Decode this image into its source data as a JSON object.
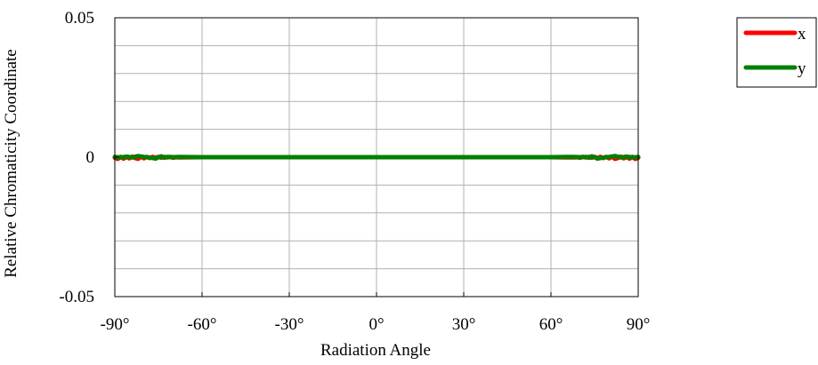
{
  "chart_data": {
    "type": "line",
    "title": "",
    "xlabel": "Radiation Angle",
    "ylabel": "Relative Chromaticity Coordinate",
    "xlim": [
      -90,
      90
    ],
    "ylim": [
      -0.05,
      0.05
    ],
    "x_ticks": [
      -90,
      -60,
      -30,
      0,
      30,
      60,
      90
    ],
    "x_tick_labels": [
      "-90°",
      "-60°",
      "-30°",
      "0°",
      "30°",
      "60°",
      "90°"
    ],
    "y_ticks": [
      0.05,
      0,
      -0.05
    ],
    "y_tick_labels": [
      "0.05",
      "0",
      "-0.05"
    ],
    "grid": true,
    "legend_position": "top-right",
    "series": [
      {
        "name": "x",
        "color": "#ff0000",
        "x": [
          -90,
          -89,
          -88,
          -87,
          -86,
          -85,
          -84,
          -83,
          -82,
          -81,
          -80,
          -79,
          -78,
          -77,
          -76,
          -75,
          -74,
          -73,
          -72,
          -71,
          -70,
          -69,
          -68,
          -60,
          -30,
          0,
          30,
          60,
          68,
          69,
          70,
          71,
          72,
          73,
          74,
          75,
          76,
          77,
          78,
          79,
          80,
          81,
          82,
          83,
          84,
          85,
          86,
          87,
          88,
          89,
          90
        ],
        "y": [
          -0.0002,
          -0.0006,
          0.0001,
          -0.0005,
          0.0001,
          -0.0004,
          0.0002,
          -0.0003,
          -0.0006,
          0.0002,
          -0.0004,
          0.0001,
          -0.0003,
          0.0001,
          -0.0002,
          0.0001,
          -0.0002,
          0.0001,
          -0.0001,
          0.0001,
          -0.0002,
          0,
          -0.0001,
          0,
          0,
          0,
          0,
          0,
          -0.0001,
          0,
          -0.0002,
          0.0001,
          -0.0001,
          0.0001,
          -0.0002,
          0.0001,
          -0.0003,
          0.0001,
          -0.0003,
          0.0001,
          -0.0004,
          0.0002,
          -0.0006,
          -0.0003,
          0.0002,
          -0.0004,
          0.0001,
          -0.0005,
          0.0001,
          -0.0006,
          -0.0002
        ]
      },
      {
        "name": "y",
        "color": "#008000",
        "x": [
          -90,
          -88,
          -86,
          -84,
          -82,
          -80,
          -78,
          -76,
          -75,
          -74,
          -73,
          -72,
          -70,
          -68,
          -60,
          -30,
          0,
          30,
          60,
          68,
          70,
          72,
          73,
          74,
          75,
          76,
          78,
          80,
          82,
          84,
          86,
          88,
          90
        ],
        "y": [
          0.0001,
          -0.0001,
          0.0002,
          -0.0001,
          0.0004,
          0.0001,
          -0.0001,
          -0.0005,
          0,
          0.0003,
          -0.0002,
          0.0001,
          0,
          0.0001,
          0,
          0,
          0,
          0,
          0,
          0.0001,
          0,
          0.0001,
          -0.0002,
          0.0003,
          0,
          -0.0005,
          -0.0001,
          0.0001,
          0.0004,
          -0.0001,
          0.0002,
          -0.0001,
          0.0001
        ]
      }
    ]
  }
}
